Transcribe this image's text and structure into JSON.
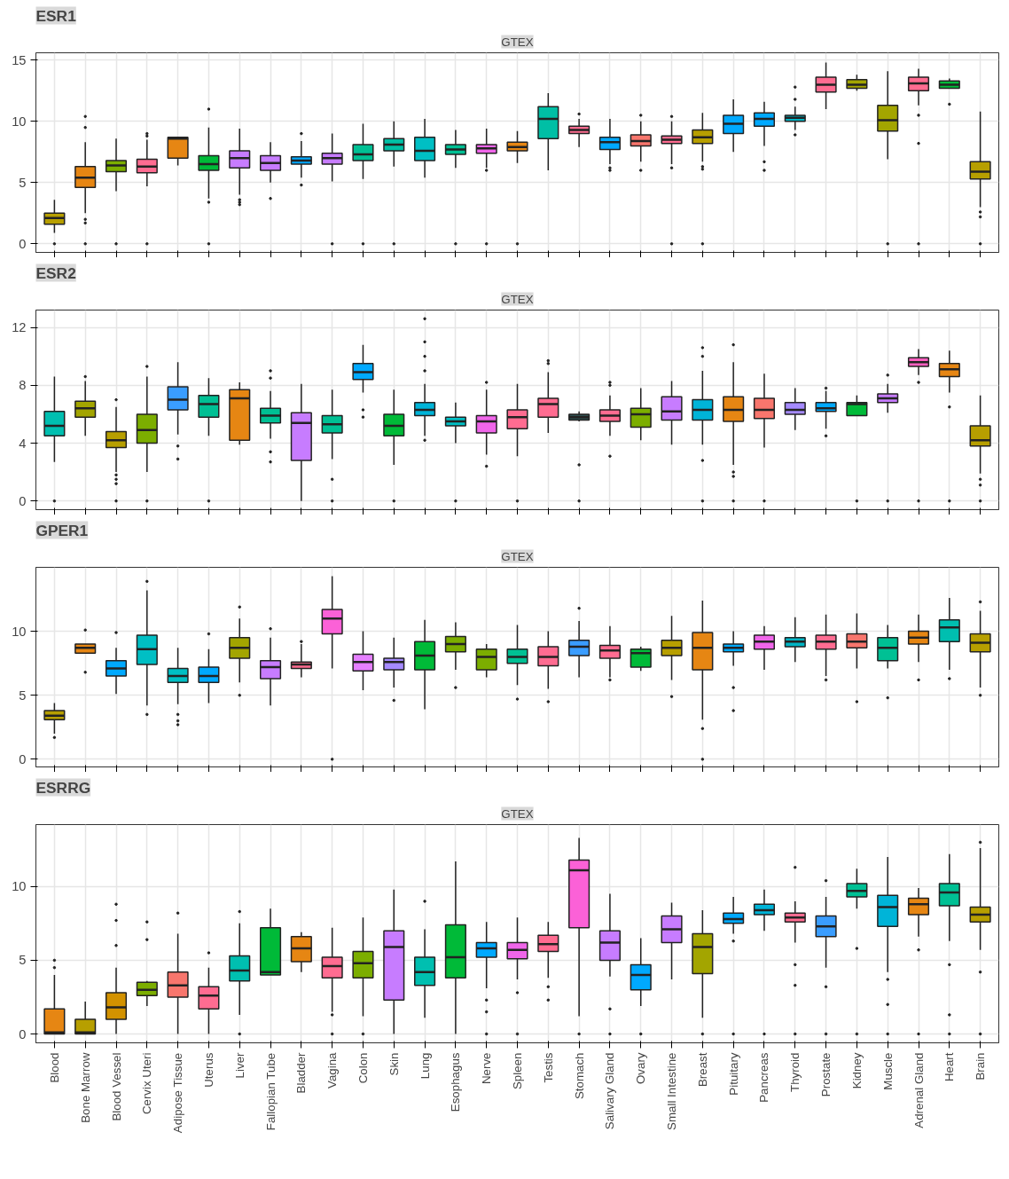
{
  "chart_data": [
    {
      "type": "box",
      "title": "ESR1",
      "subtitle": "GTEX",
      "tick_labels": "y",
      "grid": true,
      "ylim": [
        -0.7,
        15.6
      ],
      "yticks": [
        0,
        5,
        10,
        15
      ],
      "categories": [
        null,
        null,
        null,
        null,
        null,
        null,
        null,
        null,
        null,
        null,
        null,
        null,
        null,
        null,
        null,
        null,
        null,
        null,
        null,
        null,
        null,
        null,
        null,
        null,
        null,
        null,
        null,
        null,
        null,
        null,
        null
      ],
      "colors": [
        "#b79f00",
        "#e68613",
        "#7cae00",
        "#ff6c91",
        "#e68613",
        "#00ba38",
        "#c77cff",
        "#c77cff",
        "#00a9ff",
        "#c77cff",
        "#00c094",
        "#00bfa5",
        "#00bfc4",
        "#00c094",
        "#f066ea",
        "#e68613",
        "#00bfa5",
        "#ff6c91",
        "#00a9ff",
        "#f8766d",
        "#ff6c91",
        "#b79f00",
        "#00a9ff",
        "#00a9ff",
        "#00b4c4",
        "#ff6c91",
        "#a3a500",
        "#a3a500",
        "#ff6c91",
        "#00ba38",
        "#b79f00"
      ],
      "boxes": [
        {
          "low": 0.9,
          "q1": 1.6,
          "median": 2.1,
          "q3": 2.5,
          "high": 3.6,
          "outliers": [
            0
          ]
        },
        {
          "low": 2.5,
          "q1": 4.6,
          "median": 5.4,
          "q3": 6.3,
          "high": 8.3,
          "outliers": [
            2.0,
            1.7,
            10.4,
            9.5,
            0
          ]
        },
        {
          "low": 4.3,
          "q1": 5.9,
          "median": 6.4,
          "q3": 6.8,
          "high": 8.6,
          "outliers": [
            0
          ]
        },
        {
          "low": 4.7,
          "q1": 5.8,
          "median": 6.3,
          "q3": 6.9,
          "high": 8.5,
          "outliers": [
            9.0,
            8.8,
            0
          ]
        },
        {
          "low": 6.4,
          "q1": 7.0,
          "median": 8.6,
          "q3": 8.7,
          "high": 8.7
        },
        {
          "low": 3.7,
          "q1": 6.0,
          "median": 6.5,
          "q3": 7.2,
          "high": 9.5,
          "outliers": [
            3.4,
            11.0,
            0
          ]
        },
        {
          "low": 4.0,
          "q1": 6.2,
          "median": 7.0,
          "q3": 7.6,
          "high": 9.4,
          "outliers": [
            3.2,
            3.4,
            3.6
          ]
        },
        {
          "low": 5.0,
          "q1": 6.0,
          "median": 6.6,
          "q3": 7.2,
          "high": 8.3,
          "outliers": [
            3.7
          ]
        },
        {
          "low": 5.4,
          "q1": 6.5,
          "median": 6.8,
          "q3": 7.1,
          "high": 8.4,
          "outliers": [
            4.8,
            9.0
          ]
        },
        {
          "low": 5.1,
          "q1": 6.5,
          "median": 7.0,
          "q3": 7.4,
          "high": 9.0,
          "outliers": [
            0
          ]
        },
        {
          "low": 5.3,
          "q1": 6.8,
          "median": 7.3,
          "q3": 8.1,
          "high": 9.8,
          "outliers": [
            0
          ]
        },
        {
          "low": 6.3,
          "q1": 7.6,
          "median": 8.1,
          "q3": 8.6,
          "high": 10.0,
          "outliers": [
            0
          ]
        },
        {
          "low": 5.4,
          "q1": 6.8,
          "median": 7.6,
          "q3": 8.7,
          "high": 10.2
        },
        {
          "low": 6.2,
          "q1": 7.3,
          "median": 7.7,
          "q3": 8.1,
          "high": 9.3,
          "outliers": [
            0
          ]
        },
        {
          "low": 6.2,
          "q1": 7.4,
          "median": 7.8,
          "q3": 8.1,
          "high": 9.4,
          "outliers": [
            6.0,
            0
          ]
        },
        {
          "low": 6.6,
          "q1": 7.6,
          "median": 7.9,
          "q3": 8.3,
          "high": 9.2,
          "outliers": [
            0
          ]
        },
        {
          "low": 6.0,
          "q1": 8.6,
          "median": 10.2,
          "q3": 11.2,
          "high": 12.3
        },
        {
          "low": 7.9,
          "q1": 9.0,
          "median": 9.3,
          "q3": 9.6,
          "high": 10.2,
          "outliers": [
            10.6
          ]
        },
        {
          "low": 6.5,
          "q1": 7.7,
          "median": 8.3,
          "q3": 8.7,
          "high": 10.2,
          "outliers": [
            6.2,
            6.0
          ]
        },
        {
          "low": 6.7,
          "q1": 8.0,
          "median": 8.4,
          "q3": 8.9,
          "high": 10.0,
          "outliers": [
            6.0,
            10.5
          ]
        },
        {
          "low": 6.5,
          "q1": 8.2,
          "median": 8.5,
          "q3": 8.8,
          "high": 10.0,
          "outliers": [
            6.2,
            10.4,
            0
          ]
        },
        {
          "low": 6.7,
          "q1": 8.2,
          "median": 8.7,
          "q3": 9.3,
          "high": 10.7,
          "outliers": [
            6.3,
            6.1,
            0
          ]
        },
        {
          "low": 7.5,
          "q1": 9.0,
          "median": 9.8,
          "q3": 10.5,
          "high": 11.8
        },
        {
          "low": 8.0,
          "q1": 9.6,
          "median": 10.2,
          "q3": 10.7,
          "high": 11.6,
          "outliers": [
            6.7,
            6.0
          ]
        },
        {
          "low": 9.3,
          "q1": 10.0,
          "median": 10.3,
          "q3": 10.5,
          "high": 11.2,
          "outliers": [
            8.9,
            12.8,
            11.8
          ]
        },
        {
          "low": 11.0,
          "q1": 12.4,
          "median": 13.0,
          "q3": 13.6,
          "high": 14.8
        },
        {
          "low": 12.5,
          "q1": 12.7,
          "median": 13.0,
          "q3": 13.4,
          "high": 13.8
        },
        {
          "low": 6.9,
          "q1": 9.2,
          "median": 10.1,
          "q3": 11.3,
          "high": 14.1,
          "outliers": [
            0
          ]
        },
        {
          "low": 11.3,
          "q1": 12.5,
          "median": 13.1,
          "q3": 13.6,
          "high": 14.3,
          "outliers": [
            10.5,
            8.2,
            0
          ]
        },
        {
          "low": 12.7,
          "q1": 12.7,
          "median": 13.0,
          "q3": 13.3,
          "high": 13.5,
          "outliers": [
            11.4
          ]
        },
        {
          "low": 3.0,
          "q1": 5.3,
          "median": 5.9,
          "q3": 6.7,
          "high": 10.8,
          "outliers": [
            2.6,
            2.2,
            0
          ]
        }
      ]
    },
    {
      "type": "box",
      "title": "ESR2",
      "subtitle": "GTEX",
      "tick_labels": "y",
      "grid": true,
      "ylim": [
        -0.6,
        13.2
      ],
      "yticks": [
        0,
        4,
        8,
        12
      ],
      "categories": [
        null,
        null,
        null,
        null,
        null,
        null,
        null,
        null,
        null,
        null,
        null,
        null,
        null,
        null,
        null,
        null,
        null,
        null,
        null,
        null,
        null,
        null,
        null,
        null,
        null,
        null,
        null,
        null,
        null,
        null,
        null
      ],
      "colors": [
        "#00bfb0",
        "#a3a500",
        "#b79f00",
        "#7cae00",
        "#3a9dff",
        "#00c094",
        "#e68613",
        "#00c094",
        "#c77cff",
        "#00c094",
        "#00a9ff",
        "#00ba38",
        "#00b4d8",
        "#00bfc4",
        "#f066ea",
        "#ff6c91",
        "#ff6c91",
        "#2f4f4f",
        "#ff6c91",
        "#7cae00",
        "#c77cff",
        "#00b4d8",
        "#e68613",
        "#f8766d",
        "#a58aff",
        "#00a9ff",
        "#00ba38",
        "#c77cff",
        "#ff5fbf",
        "#e68613",
        "#b79f00"
      ],
      "boxes": [
        {
          "low": 2.7,
          "q1": 4.5,
          "median": 5.2,
          "q3": 6.2,
          "high": 8.6,
          "outliers": [
            0
          ]
        },
        {
          "low": 4.5,
          "q1": 5.8,
          "median": 6.4,
          "q3": 6.9,
          "high": 8.3,
          "outliers": [
            8.6
          ]
        },
        {
          "low": 2.0,
          "q1": 3.7,
          "median": 4.2,
          "q3": 4.8,
          "high": 6.5,
          "outliers": [
            1.8,
            1.5,
            1.2,
            7.0,
            0
          ]
        },
        {
          "low": 2.0,
          "q1": 4.0,
          "median": 4.9,
          "q3": 6.0,
          "high": 8.6,
          "outliers": [
            9.3,
            0
          ]
        },
        {
          "low": 4.6,
          "q1": 6.3,
          "median": 7.0,
          "q3": 7.9,
          "high": 9.6,
          "outliers": [
            3.8,
            2.9
          ]
        },
        {
          "low": 4.5,
          "q1": 5.8,
          "median": 6.7,
          "q3": 7.3,
          "high": 8.5,
          "outliers": [
            0
          ]
        },
        {
          "low": 3.9,
          "q1": 4.2,
          "median": 7.1,
          "q3": 7.7,
          "high": 8.2
        },
        {
          "low": 4.3,
          "q1": 5.4,
          "median": 5.9,
          "q3": 6.4,
          "high": 7.6,
          "outliers": [
            9.0,
            8.5,
            3.4,
            2.7
          ]
        },
        {
          "low": 0,
          "q1": 2.8,
          "median": 5.4,
          "q3": 6.1,
          "high": 8.1
        },
        {
          "low": 2.9,
          "q1": 4.7,
          "median": 5.3,
          "q3": 5.9,
          "high": 7.7,
          "outliers": [
            1.5,
            0
          ]
        },
        {
          "low": 7.5,
          "q1": 8.4,
          "median": 8.9,
          "q3": 9.5,
          "high": 10.8,
          "outliers": [
            6.3,
            5.8
          ]
        },
        {
          "low": 2.5,
          "q1": 4.5,
          "median": 5.2,
          "q3": 6.0,
          "high": 7.7,
          "outliers": [
            0
          ]
        },
        {
          "low": 4.5,
          "q1": 5.9,
          "median": 6.3,
          "q3": 6.8,
          "high": 8.1,
          "outliers": [
            9.0,
            10.0,
            11.0,
            12.6,
            4.2
          ]
        },
        {
          "low": 4.0,
          "q1": 5.2,
          "median": 5.5,
          "q3": 5.8,
          "high": 6.8,
          "outliers": [
            0
          ]
        },
        {
          "low": 3.2,
          "q1": 4.7,
          "median": 5.5,
          "q3": 5.9,
          "high": 7.7,
          "outliers": [
            8.2,
            2.4
          ]
        },
        {
          "low": 3.1,
          "q1": 5.0,
          "median": 5.8,
          "q3": 6.3,
          "high": 8.1,
          "outliers": [
            0
          ]
        },
        {
          "low": 4.7,
          "q1": 5.8,
          "median": 6.7,
          "q3": 7.1,
          "high": 8.9,
          "outliers": [
            9.5,
            9.7
          ]
        },
        {
          "low": 5.5,
          "q1": 5.6,
          "median": 5.8,
          "q3": 6.0,
          "high": 6.2,
          "outliers": [
            2.5,
            0
          ]
        },
        {
          "low": 4.5,
          "q1": 5.5,
          "median": 5.9,
          "q3": 6.3,
          "high": 7.3,
          "outliers": [
            8.2,
            8.0,
            3.1
          ]
        },
        {
          "low": 4.2,
          "q1": 5.1,
          "median": 6.0,
          "q3": 6.4,
          "high": 7.8
        },
        {
          "low": 3.9,
          "q1": 5.6,
          "median": 6.2,
          "q3": 7.2,
          "high": 8.3
        },
        {
          "low": 3.9,
          "q1": 5.6,
          "median": 6.3,
          "q3": 7.0,
          "high": 9.0,
          "outliers": [
            10.6,
            10.0,
            2.8,
            0
          ]
        },
        {
          "low": 2.5,
          "q1": 5.5,
          "median": 6.3,
          "q3": 7.2,
          "high": 9.6,
          "outliers": [
            10.8,
            2.0,
            1.7,
            0
          ]
        },
        {
          "low": 3.7,
          "q1": 5.7,
          "median": 6.3,
          "q3": 7.1,
          "high": 8.8,
          "outliers": [
            0
          ]
        },
        {
          "low": 4.9,
          "q1": 6.0,
          "median": 6.3,
          "q3": 6.8,
          "high": 7.8
        },
        {
          "low": 5.0,
          "q1": 6.2,
          "median": 6.4,
          "q3": 6.8,
          "high": 7.6,
          "outliers": [
            4.5,
            7.8
          ]
        },
        {
          "low": 5.9,
          "q1": 5.9,
          "median": 6.7,
          "q3": 6.8,
          "high": 7.3,
          "outliers": [
            0
          ]
        },
        {
          "low": 6.1,
          "q1": 6.8,
          "median": 7.1,
          "q3": 7.4,
          "high": 8.1,
          "outliers": [
            8.7,
            0
          ]
        },
        {
          "low": 8.7,
          "q1": 9.3,
          "median": 9.6,
          "q3": 9.9,
          "high": 10.5,
          "outliers": [
            8.2,
            0
          ]
        },
        {
          "low": 7.5,
          "q1": 8.6,
          "median": 9.1,
          "q3": 9.5,
          "high": 10.4,
          "outliers": [
            6.5,
            0
          ]
        },
        {
          "low": 1.9,
          "q1": 3.8,
          "median": 4.2,
          "q3": 5.2,
          "high": 7.3,
          "outliers": [
            1.5,
            1.1,
            0
          ]
        }
      ]
    },
    {
      "type": "box",
      "title": "GPER1",
      "subtitle": "GTEX",
      "tick_labels": "y",
      "grid": true,
      "ylim": [
        -0.6,
        15
      ],
      "yticks": [
        0,
        5,
        10
      ],
      "categories": [
        null,
        null,
        null,
        null,
        null,
        null,
        null,
        null,
        null,
        null,
        null,
        null,
        null,
        null,
        null,
        null,
        null,
        null,
        null,
        null,
        null,
        null,
        null,
        null,
        null,
        null,
        null,
        null,
        null,
        null,
        null
      ],
      "colors": [
        "#b79f00",
        "#e68613",
        "#00a9ff",
        "#00bfc4",
        "#00bfc4",
        "#00a9ff",
        "#a3a500",
        "#c77cff",
        "#ff6c91",
        "#fb61d7",
        "#e580ff",
        "#a58aff",
        "#00ba38",
        "#7cae00",
        "#7cae00",
        "#00c094",
        "#ff6c91",
        "#3a9dff",
        "#ff6c91",
        "#00ba38",
        "#b79f00",
        "#e68613",
        "#00a9ff",
        "#f066ea",
        "#00b4c4",
        "#ff6c91",
        "#f8766d",
        "#00c094",
        "#e68613",
        "#00bfb0",
        "#b79f00"
      ],
      "boxes": [
        {
          "low": 2.0,
          "q1": 3.1,
          "median": 3.4,
          "q3": 3.8,
          "high": 4.4,
          "outliers": [
            1.7
          ]
        },
        {
          "low": 8.3,
          "q1": 8.3,
          "median": 8.7,
          "q3": 9.0,
          "high": 9.0,
          "outliers": [
            6.8,
            10.1
          ]
        },
        {
          "low": 5.1,
          "q1": 6.5,
          "median": 7.1,
          "q3": 7.7,
          "high": 8.7,
          "outliers": [
            9.9
          ]
        },
        {
          "low": 4.2,
          "q1": 7.4,
          "median": 8.6,
          "q3": 9.7,
          "high": 13.2,
          "outliers": [
            3.5,
            13.9
          ]
        },
        {
          "low": 4.3,
          "q1": 6.0,
          "median": 6.5,
          "q3": 7.1,
          "high": 8.7,
          "outliers": [
            3.5,
            3.0,
            2.7
          ]
        },
        {
          "low": 4.4,
          "q1": 6.0,
          "median": 6.5,
          "q3": 7.2,
          "high": 8.6,
          "outliers": [
            9.8
          ]
        },
        {
          "low": 6.0,
          "q1": 7.9,
          "median": 8.7,
          "q3": 9.5,
          "high": 11.0,
          "outliers": [
            5.0,
            11.9
          ]
        },
        {
          "low": 4.2,
          "q1": 6.3,
          "median": 7.2,
          "q3": 7.7,
          "high": 9.5,
          "outliers": [
            10.2
          ]
        },
        {
          "low": 6.4,
          "q1": 7.1,
          "median": 7.4,
          "q3": 7.6,
          "high": 9.0,
          "outliers": [
            9.2
          ]
        },
        {
          "low": 7.1,
          "q1": 9.8,
          "median": 11.0,
          "q3": 11.7,
          "high": 14.3,
          "outliers": [
            0
          ]
        },
        {
          "low": 5.4,
          "q1": 6.9,
          "median": 7.6,
          "q3": 8.2,
          "high": 10.0
        },
        {
          "low": 5.6,
          "q1": 7.0,
          "median": 7.6,
          "q3": 7.9,
          "high": 9.5,
          "outliers": [
            4.6
          ]
        },
        {
          "low": 3.9,
          "q1": 7.0,
          "median": 8.1,
          "q3": 9.2,
          "high": 10.9
        },
        {
          "low": 7.0,
          "q1": 8.4,
          "median": 9.0,
          "q3": 9.6,
          "high": 10.7,
          "outliers": [
            5.6
          ]
        },
        {
          "low": 6.4,
          "q1": 7.0,
          "median": 8.0,
          "q3": 8.6,
          "high": 9.0
        },
        {
          "low": 5.8,
          "q1": 7.5,
          "median": 8.0,
          "q3": 8.6,
          "high": 10.5,
          "outliers": [
            4.7
          ]
        },
        {
          "low": 5.5,
          "q1": 7.3,
          "median": 8.0,
          "q3": 8.8,
          "high": 10.0,
          "outliers": [
            4.5
          ]
        },
        {
          "low": 6.4,
          "q1": 8.1,
          "median": 8.8,
          "q3": 9.3,
          "high": 10.8,
          "outliers": [
            11.8
          ]
        },
        {
          "low": 6.4,
          "q1": 7.9,
          "median": 8.5,
          "q3": 8.9,
          "high": 10.4,
          "outliers": [
            6.2
          ]
        },
        {
          "low": 6.9,
          "q1": 7.2,
          "median": 8.3,
          "q3": 8.6,
          "high": 8.8
        },
        {
          "low": 6.2,
          "q1": 8.1,
          "median": 8.7,
          "q3": 9.3,
          "high": 11.2,
          "outliers": [
            4.9
          ]
        },
        {
          "low": 3.1,
          "q1": 7.0,
          "median": 8.7,
          "q3": 9.9,
          "high": 12.4,
          "outliers": [
            2.4,
            0
          ]
        },
        {
          "low": 7.3,
          "q1": 8.4,
          "median": 8.7,
          "q3": 9.0,
          "high": 10.0,
          "outliers": [
            5.6,
            3.8
          ]
        },
        {
          "low": 7.0,
          "q1": 8.6,
          "median": 9.2,
          "q3": 9.7,
          "high": 10.4
        },
        {
          "low": 7.6,
          "q1": 8.8,
          "median": 9.2,
          "q3": 9.5,
          "high": 11.1
        },
        {
          "low": 6.5,
          "q1": 8.6,
          "median": 9.2,
          "q3": 9.7,
          "high": 11.3,
          "outliers": [
            6.2
          ]
        },
        {
          "low": 7.1,
          "q1": 8.7,
          "median": 9.2,
          "q3": 9.8,
          "high": 11.4,
          "outliers": [
            4.5
          ]
        },
        {
          "low": 7.1,
          "q1": 7.7,
          "median": 8.7,
          "q3": 9.5,
          "high": 10.5,
          "outliers": [
            4.8
          ]
        },
        {
          "low": 7.6,
          "q1": 9.0,
          "median": 9.5,
          "q3": 10.0,
          "high": 11.3,
          "outliers": [
            6.2
          ]
        },
        {
          "low": 7.0,
          "q1": 9.2,
          "median": 10.3,
          "q3": 10.9,
          "high": 12.6,
          "outliers": [
            6.3
          ]
        },
        {
          "low": 5.6,
          "q1": 8.4,
          "median": 9.1,
          "q3": 9.8,
          "high": 11.6,
          "outliers": [
            5.0,
            12.3
          ]
        }
      ]
    },
    {
      "type": "box",
      "title": "ESRRG",
      "subtitle": "GTEX",
      "grid": true,
      "ylim": [
        -0.6,
        14.2
      ],
      "yticks": [
        0,
        5,
        10
      ],
      "categories": [
        "Blood",
        "Bone Marrow",
        "Blood Vessel",
        "Cervix Uteri",
        "Adipose Tissue",
        "Uterus",
        "Liver",
        "Fallopian Tube",
        "Bladder",
        "Vagina",
        "Colon",
        "Skin",
        "Lung",
        "Esophagus",
        "Nerve",
        "Spleen",
        "Testis",
        "Stomach",
        "Salivary Gland",
        "Ovary",
        "Small Intestine",
        "Breast",
        "Pituitary",
        "Pancreas",
        "Thyroid",
        "Prostate",
        "Kidney",
        "Muscle",
        "Adrenal Gland",
        "Heart",
        "Brain"
      ],
      "colors": [
        "#e68613",
        "#b79f00",
        "#d39200",
        "#7cae00",
        "#f8766d",
        "#ff6c91",
        "#00bfb0",
        "#00ba38",
        "#e68613",
        "#ff6c91",
        "#7cae00",
        "#c77cff",
        "#00bfb0",
        "#00ba38",
        "#00a9ff",
        "#f066ea",
        "#ff6c91",
        "#fb61d7",
        "#c77cff",
        "#00a9ff",
        "#c77cff",
        "#a3a500",
        "#00a9ff",
        "#00b4d8",
        "#ff6c91",
        "#3a9dff",
        "#00c094",
        "#00b4d8",
        "#e68613",
        "#00c094",
        "#b79f00"
      ],
      "boxes": [
        {
          "low": 0,
          "q1": 0,
          "median": 0.1,
          "q3": 1.7,
          "high": 4.0,
          "outliers": [
            4.5,
            5.0
          ]
        },
        {
          "low": 0,
          "q1": 0,
          "median": 0.1,
          "q3": 1.0,
          "high": 2.2
        },
        {
          "low": 0,
          "q1": 1.0,
          "median": 1.8,
          "q3": 2.8,
          "high": 4.5,
          "outliers": [
            6.0,
            7.7,
            8.8
          ]
        },
        {
          "low": 1.9,
          "q1": 2.6,
          "median": 3.0,
          "q3": 3.5,
          "high": 3.6,
          "outliers": [
            6.4,
            7.6
          ]
        },
        {
          "low": 0,
          "q1": 2.5,
          "median": 3.3,
          "q3": 4.2,
          "high": 6.8,
          "outliers": [
            8.2
          ]
        },
        {
          "low": 0,
          "q1": 1.7,
          "median": 2.6,
          "q3": 3.2,
          "high": 4.5,
          "outliers": [
            5.5
          ]
        },
        {
          "low": 1.3,
          "q1": 3.6,
          "median": 4.3,
          "q3": 5.3,
          "high": 7.5,
          "outliers": [
            8.3,
            0
          ]
        },
        {
          "low": 4.0,
          "q1": 4.0,
          "median": 4.2,
          "q3": 7.2,
          "high": 8.5
        },
        {
          "low": 4.2,
          "q1": 4.9,
          "median": 5.8,
          "q3": 6.6,
          "high": 6.9
        },
        {
          "low": 1.5,
          "q1": 3.8,
          "median": 4.6,
          "q3": 5.2,
          "high": 7.2,
          "outliers": [
            1.3,
            0
          ]
        },
        {
          "low": 1.2,
          "q1": 3.8,
          "median": 4.8,
          "q3": 5.6,
          "high": 7.9,
          "outliers": [
            0
          ]
        },
        {
          "low": 0,
          "q1": 2.3,
          "median": 5.9,
          "q3": 7.0,
          "high": 9.8
        },
        {
          "low": 1.1,
          "q1": 3.3,
          "median": 4.2,
          "q3": 5.2,
          "high": 7.1,
          "outliers": [
            9.0
          ]
        },
        {
          "low": 0,
          "q1": 3.8,
          "median": 5.2,
          "q3": 7.4,
          "high": 11.7
        },
        {
          "low": 3.1,
          "q1": 5.2,
          "median": 5.8,
          "q3": 6.2,
          "high": 7.6,
          "outliers": [
            2.3,
            1.5,
            0
          ]
        },
        {
          "low": 3.7,
          "q1": 5.1,
          "median": 5.7,
          "q3": 6.2,
          "high": 7.9,
          "outliers": [
            2.8,
            0
          ]
        },
        {
          "low": 3.8,
          "q1": 5.6,
          "median": 6.1,
          "q3": 6.7,
          "high": 7.6,
          "outliers": [
            3.2,
            2.3
          ]
        },
        {
          "low": 1.2,
          "q1": 7.2,
          "median": 11.1,
          "q3": 11.8,
          "high": 13.3,
          "outliers": [
            0
          ]
        },
        {
          "low": 3.9,
          "q1": 5.0,
          "median": 6.2,
          "q3": 7.0,
          "high": 9.5,
          "outliers": [
            1.7,
            0
          ]
        },
        {
          "low": 1.9,
          "q1": 3.0,
          "median": 4.0,
          "q3": 4.7,
          "high": 6.5,
          "outliers": [
            0
          ]
        },
        {
          "low": 3.7,
          "q1": 6.2,
          "median": 7.1,
          "q3": 8.0,
          "high": 8.9
        },
        {
          "low": 1.1,
          "q1": 4.1,
          "median": 5.9,
          "q3": 6.8,
          "high": 8.4,
          "outliers": [
            0
          ]
        },
        {
          "low": 6.8,
          "q1": 7.5,
          "median": 7.8,
          "q3": 8.2,
          "high": 9.3,
          "outliers": [
            6.3,
            0
          ]
        },
        {
          "low": 7.0,
          "q1": 8.1,
          "median": 8.4,
          "q3": 8.8,
          "high": 9.8,
          "outliers": [
            0
          ]
        },
        {
          "low": 6.2,
          "q1": 7.6,
          "median": 7.9,
          "q3": 8.2,
          "high": 9.0,
          "outliers": [
            11.3,
            3.3,
            4.7,
            0
          ]
        },
        {
          "low": 4.5,
          "q1": 6.6,
          "median": 7.3,
          "q3": 8.0,
          "high": 9.3,
          "outliers": [
            3.2,
            10.4,
            0
          ]
        },
        {
          "low": 8.5,
          "q1": 9.3,
          "median": 9.7,
          "q3": 10.2,
          "high": 11.2,
          "outliers": [
            5.8,
            0
          ]
        },
        {
          "low": 4.2,
          "q1": 7.3,
          "median": 8.6,
          "q3": 9.4,
          "high": 12.0,
          "outliers": [
            3.7,
            2.0,
            0
          ]
        },
        {
          "low": 6.6,
          "q1": 8.1,
          "median": 8.8,
          "q3": 9.2,
          "high": 9.9,
          "outliers": [
            5.7,
            0
          ]
        },
        {
          "low": 6.3,
          "q1": 8.7,
          "median": 9.6,
          "q3": 10.2,
          "high": 12.2,
          "outliers": [
            4.7,
            1.3,
            0
          ]
        },
        {
          "low": 5.7,
          "q1": 7.6,
          "median": 8.1,
          "q3": 8.6,
          "high": 12.6,
          "outliers": [
            4.2,
            13.0,
            0
          ]
        }
      ]
    }
  ]
}
